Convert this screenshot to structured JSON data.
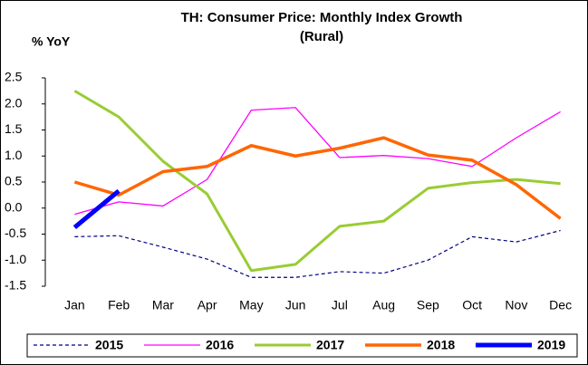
{
  "chart_data": {
    "type": "line",
    "title": "TH: Consumer Price: Monthly Index Growth",
    "subtitle": "(Rural)",
    "y_label": "% YoY",
    "categories": [
      "Jan",
      "Feb",
      "Mar",
      "Apr",
      "May",
      "Jun",
      "Jul",
      "Aug",
      "Sep",
      "Oct",
      "Nov",
      "Dec"
    ],
    "series": [
      {
        "name": "2015",
        "color": "#000080",
        "width": 1.2,
        "dash": true,
        "values": [
          -0.55,
          -0.53,
          -0.75,
          -0.98,
          -1.33,
          -1.33,
          -1.22,
          -1.25,
          -1.0,
          -0.55,
          -0.65,
          -0.43
        ]
      },
      {
        "name": "2016",
        "color": "#ff00ff",
        "width": 1.3,
        "dash": false,
        "values": [
          -0.12,
          0.12,
          0.04,
          0.55,
          1.88,
          1.93,
          0.97,
          1.01,
          0.95,
          0.8,
          1.35,
          1.85
        ]
      },
      {
        "name": "2017",
        "color": "#99cc33",
        "width": 3,
        "dash": false,
        "values": [
          2.25,
          1.75,
          0.9,
          0.27,
          -1.2,
          -1.08,
          -0.35,
          -0.25,
          0.38,
          0.49,
          0.55,
          0.47
        ]
      },
      {
        "name": "2018",
        "color": "#ff6600",
        "width": 3.5,
        "dash": false,
        "values": [
          0.5,
          0.25,
          0.7,
          0.8,
          1.2,
          1.0,
          1.15,
          1.35,
          1.02,
          0.92,
          0.45,
          -0.2
        ]
      },
      {
        "name": "2019",
        "color": "#0000ff",
        "width": 5,
        "dash": false,
        "values": [
          -0.37,
          0.33,
          null,
          null,
          null,
          null,
          null,
          null,
          null,
          null,
          null,
          null
        ]
      }
    ],
    "ylim": [
      -1.5,
      2.5
    ],
    "yticks": [
      2.5,
      {
        "value": 2.0,
        "label": "2.0"
      },
      1.5,
      {
        "value": 1.0,
        "label": "1.0"
      },
      0.5,
      {
        "value": 0.0,
        "label": "0.0"
      },
      -0.5,
      {
        "value": -1.0,
        "label": "-1.0"
      },
      -1.5
    ],
    "legend": "bottom"
  }
}
